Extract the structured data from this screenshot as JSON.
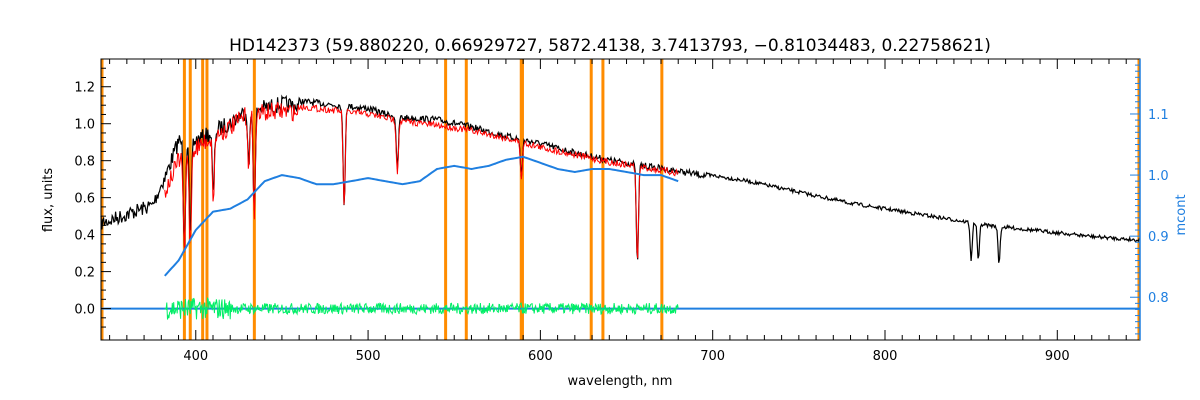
{
  "chart_data": {
    "type": "line",
    "title": "HD142373    (59.880220, 0.66929727, 5872.4138, 3.7413793, −0.81034483, 0.22758621)",
    "xlabel": "wavelength, nm",
    "ylabel": "flux, units",
    "y2label": "mcont",
    "xlim": [
      345,
      948
    ],
    "ylim": [
      -0.17,
      1.35
    ],
    "y2lim": [
      0.73,
      1.19
    ],
    "x_ticks": [
      400,
      500,
      600,
      700,
      800,
      900
    ],
    "y_ticks": [
      0.0,
      0.2,
      0.4,
      0.6,
      0.8,
      1.0,
      1.2
    ],
    "y_tick_labels": [
      "0.0",
      "0.2",
      "0.4",
      "0.6",
      "0.8",
      "1.0",
      "1.2"
    ],
    "y2_ticks": [
      0.8,
      0.9,
      1.0,
      1.1
    ],
    "y2_tick_labels": [
      "0.8",
      "0.9",
      "1.0",
      "1.1"
    ],
    "grid": false,
    "colors": {
      "observed": "#000000",
      "model": "#ff0000",
      "residual": "#00ee66",
      "continuum": "#1f7fe0",
      "zero_line": "#1f7fe0",
      "mask": "#ff8c00",
      "right_axis": "#1f7fe0"
    },
    "masked_wavelengths": [
      393.4,
      396.8,
      404.0,
      406.5,
      434.0,
      545.0,
      557.0,
      588.9,
      589.6,
      629.5,
      636.3,
      670.5
    ],
    "series": [
      {
        "role": "observed",
        "x": [
          345,
          360,
          375,
          382,
          390,
          400,
          410,
          420,
          430,
          440,
          450,
          460,
          470,
          480,
          490,
          500,
          510,
          520,
          540,
          560,
          580,
          600,
          620,
          640,
          660,
          680,
          700,
          720,
          740,
          760,
          780,
          800,
          820,
          840,
          860,
          880,
          900,
          920,
          948
        ],
        "y": [
          0.5,
          0.55,
          0.6,
          0.75,
          0.95,
          0.95,
          1.0,
          1.05,
          1.12,
          1.13,
          1.15,
          1.14,
          1.13,
          1.12,
          1.11,
          1.1,
          1.07,
          1.05,
          1.04,
          1.0,
          0.95,
          0.91,
          0.86,
          0.82,
          0.79,
          0.76,
          0.73,
          0.7,
          0.66,
          0.62,
          0.58,
          0.55,
          0.52,
          0.49,
          0.46,
          0.44,
          0.42,
          0.4,
          0.38
        ]
      },
      {
        "role": "model",
        "x": [
          382,
          390,
          400,
          410,
          420,
          430,
          440,
          450,
          460,
          470,
          480,
          490,
          500,
          510,
          520,
          540,
          560,
          580,
          600,
          620,
          640,
          660,
          680
        ],
        "y": [
          0.68,
          0.85,
          0.92,
          0.98,
          1.03,
          1.1,
          1.11,
          1.12,
          1.11,
          1.1,
          1.09,
          1.08,
          1.07,
          1.05,
          1.03,
          1.01,
          0.98,
          0.94,
          0.89,
          0.85,
          0.81,
          0.78,
          0.75
        ]
      },
      {
        "role": "continuum",
        "axis": "right",
        "x": [
          382,
          390,
          400,
          410,
          420,
          430,
          440,
          450,
          460,
          470,
          480,
          490,
          500,
          510,
          520,
          530,
          540,
          550,
          560,
          570,
          580,
          590,
          600,
          610,
          620,
          630,
          640,
          650,
          660,
          670,
          680
        ],
        "y": [
          0.835,
          0.86,
          0.91,
          0.94,
          0.945,
          0.96,
          0.99,
          1.0,
          0.995,
          0.985,
          0.985,
          0.99,
          0.995,
          0.99,
          0.985,
          0.99,
          1.01,
          1.015,
          1.01,
          1.015,
          1.025,
          1.03,
          1.02,
          1.01,
          1.005,
          1.01,
          1.01,
          1.005,
          1.0,
          1.0,
          0.99
        ]
      },
      {
        "role": "residual",
        "x": [
          382,
          400,
          420,
          440,
          460,
          480,
          500,
          520,
          540,
          560,
          580,
          600,
          620,
          640,
          660,
          680
        ],
        "y": [
          0.0,
          0.0,
          0.0,
          0.0,
          0.0,
          0.0,
          0.0,
          0.0,
          0.0,
          0.0,
          0.0,
          0.0,
          0.0,
          0.0,
          0.0,
          0.0
        ]
      }
    ],
    "absorption_lines": [
      {
        "x": 393.4,
        "depth": 0.55
      },
      {
        "x": 396.8,
        "depth": 0.55
      },
      {
        "x": 410.2,
        "depth": 0.35
      },
      {
        "x": 430.8,
        "depth": 0.3
      },
      {
        "x": 434.0,
        "depth": 0.55
      },
      {
        "x": 486.1,
        "depth": 0.55
      },
      {
        "x": 517.0,
        "depth": 0.3
      },
      {
        "x": 589.0,
        "depth": 0.2
      },
      {
        "x": 656.3,
        "depth": 0.55
      },
      {
        "x": 850.0,
        "depth": 0.2
      },
      {
        "x": 854.2,
        "depth": 0.2
      },
      {
        "x": 866.2,
        "depth": 0.2
      }
    ]
  }
}
